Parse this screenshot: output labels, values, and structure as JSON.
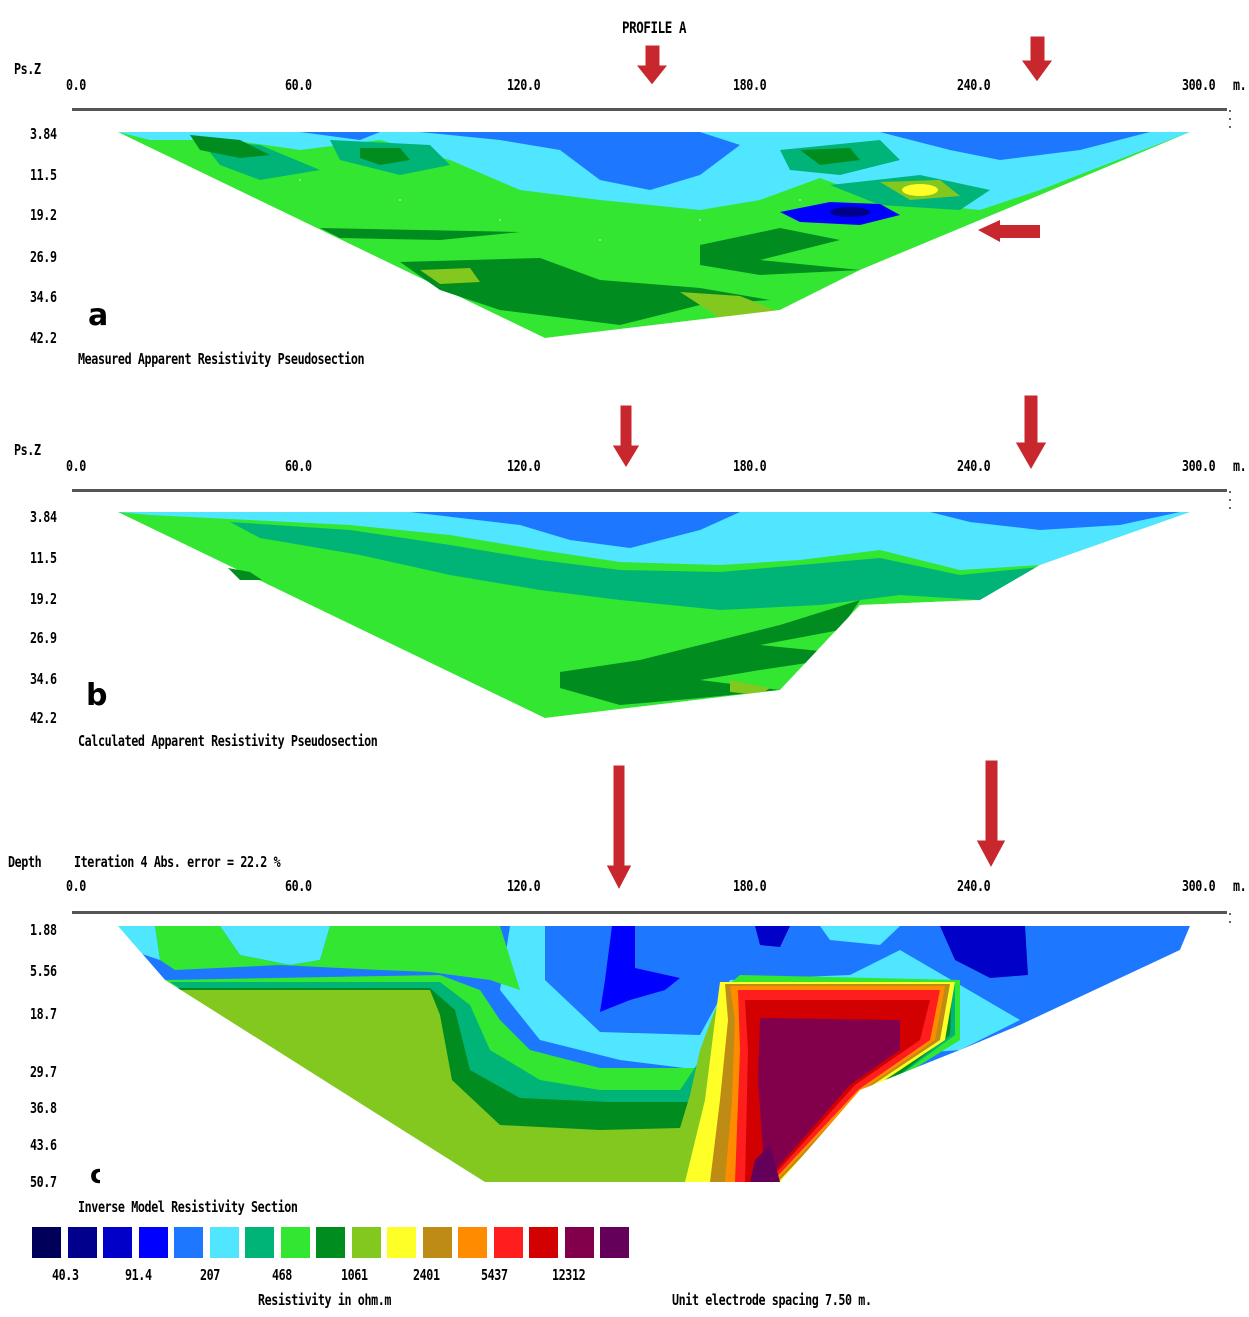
{
  "title": "PROFILE A",
  "panels": [
    {
      "id": "a",
      "ylabel": "Ps.Z",
      "letter": "a",
      "caption": "Measured Apparent Resistivity Pseudosection",
      "xticks": [
        "0.0",
        "60.0",
        "120.0",
        "180.0",
        "240.0",
        "300.0"
      ],
      "xunit": "m.",
      "yticks": [
        "3.84",
        "11.5",
        "19.2",
        "26.9",
        "34.6",
        "42.2"
      ]
    },
    {
      "id": "b",
      "ylabel": "Ps.Z",
      "letter": "b",
      "caption": "Calculated Apparent Resistivity Pseudosection",
      "xticks": [
        "0.0",
        "60.0",
        "120.0",
        "180.0",
        "240.0",
        "300.0"
      ],
      "xunit": "m.",
      "yticks": [
        "3.84",
        "11.5",
        "19.2",
        "26.9",
        "34.6",
        "42.2"
      ]
    },
    {
      "id": "c",
      "ylabel": "Depth",
      "iteration": "Iteration 4 Abs. error = 22.2 %",
      "letter": "c",
      "caption": "Inverse Model Resistivity Section",
      "xticks": [
        "0.0",
        "60.0",
        "120.0",
        "180.0",
        "240.0",
        "300.0"
      ],
      "xunit": "m.",
      "yticks": [
        "1.88",
        "5.56",
        "18.7",
        "29.7",
        "36.8",
        "43.6",
        "50.7"
      ]
    }
  ],
  "legend": {
    "colors": [
      "#00005a",
      "#00008c",
      "#0000c8",
      "#0000ff",
      "#1e78ff",
      "#50e6ff",
      "#00b478",
      "#32e632",
      "#008c1e",
      "#82c81e",
      "#ffff28",
      "#be8c14",
      "#ff8c00",
      "#ff1e1e",
      "#d20000",
      "#82004b",
      "#64005a"
    ],
    "labels": [
      "40.3",
      "91.4",
      "207",
      "468",
      "1061",
      "2401",
      "5437",
      "12312"
    ],
    "title": "Resistivity in ohm.m",
    "spacing": "Unit electrode spacing 7.50 m."
  },
  "arrow_color": "#c8282d"
}
